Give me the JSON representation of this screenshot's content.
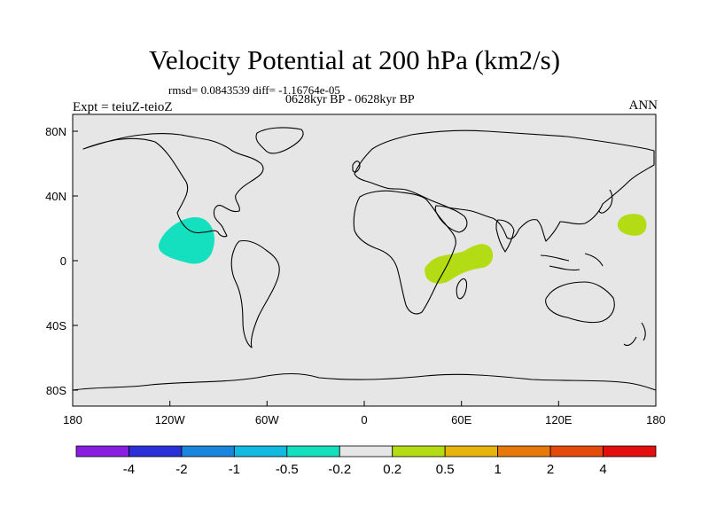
{
  "title": "Velocity Potential at 200 hPa (km2/s)",
  "stats": "rmsd= 0.0843539 diff= -1.16764e-05",
  "period": "0628kyr BP - 0628kyr BP",
  "experiment": "Expt = teiuZ-teioZ",
  "season": "ANN",
  "chart_data": {
    "type": "map",
    "projection": "cylindrical-equidistant",
    "lon_range": [
      -180,
      180
    ],
    "lat_range": [
      -90,
      90
    ],
    "lon_ticks": [
      "180",
      "120W",
      "60W",
      "0",
      "60E",
      "120E",
      "180"
    ],
    "lat_ticks": [
      "80N",
      "40N",
      "0",
      "40S",
      "80S"
    ],
    "colorbar": {
      "levels": [
        "-4",
        "-2",
        "-1",
        "-0.5",
        "-0.2",
        "0.2",
        "0.5",
        "1",
        "2",
        "4"
      ],
      "colors": [
        "#8a1ee0",
        "#2b2fd8",
        "#1b84dc",
        "#12b9e0",
        "#14e0c0",
        "#e6e6e6",
        "#b3dc14",
        "#e6b40c",
        "#e6780c",
        "#e34a0c",
        "#e30e0e"
      ]
    },
    "features": [
      {
        "name": "negative anomaly east Pacific / Central America",
        "level_range": "-0.5 to -0.2",
        "color": "#14e0c0"
      },
      {
        "name": "positive anomaly east Africa / western Indian Ocean",
        "level_range": "0.2 to 0.5",
        "color": "#b3dc14"
      },
      {
        "name": "positive anomaly west Pacific",
        "level_range": "0.2 to 0.5",
        "color": "#b3dc14"
      }
    ]
  }
}
